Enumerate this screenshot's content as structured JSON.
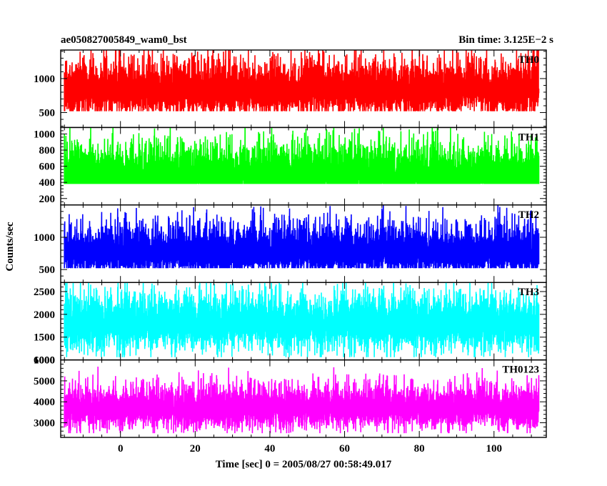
{
  "chart_data": {
    "type": "line",
    "title_left": "ae050827005849_wam0_bst",
    "title_right": "Bin time: 3.125E−2 s",
    "xlabel": "Time [sec] 0 = 2005/08/27 00:58:49.017",
    "ylabel": "Counts/sec",
    "xlim": [
      -16,
      114
    ],
    "x_ticks": [
      0,
      20,
      40,
      60,
      80,
      100
    ],
    "x_range": [
      -15,
      112
    ],
    "bin_time": 0.03125,
    "grid": false,
    "panels": [
      {
        "name": "TH0",
        "color": "#ff0000",
        "ylim": [
          280,
          1420
        ],
        "y_ticks": [
          500,
          1000
        ],
        "baseline": 820,
        "low_excursion": 420,
        "high_excursion": 560,
        "trough": 520
      },
      {
        "name": "TH1",
        "color": "#00ff00",
        "ylim": [
          120,
          1080
        ],
        "y_ticks": [
          200,
          400,
          600,
          800,
          1000
        ],
        "baseline": 470,
        "low_excursion": 300,
        "high_excursion": 520,
        "trough": 380
      },
      {
        "name": "TH2",
        "color": "#0000ff",
        "ylim": [
          300,
          1500
        ],
        "y_ticks": [
          500,
          1000
        ],
        "baseline": 730,
        "low_excursion": 350,
        "high_excursion": 620,
        "trough": 520
      },
      {
        "name": "TH3",
        "color": "#00ffff",
        "ylim": [
          1000,
          2700
        ],
        "y_ticks": [
          1000,
          1500,
          2000,
          2500
        ],
        "baseline": 1780,
        "low_excursion": 680,
        "high_excursion": 860,
        "trough": 1060
      },
      {
        "name": "TH0123",
        "color": "#ff00ff",
        "ylim": [
          2300,
          6000
        ],
        "y_ticks": [
          3000,
          4000,
          5000,
          6000
        ],
        "baseline": 3650,
        "low_excursion": 1100,
        "high_excursion": 1500,
        "trough": 2500
      }
    ]
  }
}
